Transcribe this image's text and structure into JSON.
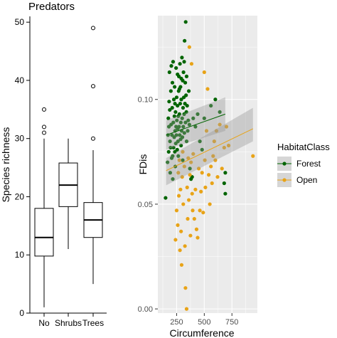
{
  "chart_data": [
    {
      "type": "box",
      "title": "Predators",
      "xlabel": "",
      "ylabel": "Species richness",
      "ylim": [
        0,
        51
      ],
      "yticks": [
        0,
        10,
        20,
        30,
        40,
        50
      ],
      "categories": [
        "No",
        "Shrubs",
        "Trees"
      ],
      "boxes": [
        {
          "category": "No",
          "min": 1,
          "q1": 9.8,
          "median": 13,
          "q3": 18,
          "max": 30,
          "outliers": [
            31,
            32,
            35
          ]
        },
        {
          "category": "Shrubs",
          "min": 11,
          "q1": 18.3,
          "median": 22,
          "q3": 25.8,
          "max": 30,
          "outliers": []
        },
        {
          "category": "Trees",
          "min": 5,
          "q1": 13,
          "median": 16,
          "q3": 19,
          "max": 28,
          "outliers": [
            30,
            39,
            49
          ]
        }
      ],
      "grid": false,
      "colors": {
        "box_fill": "#ffffff",
        "box_line": "#000000",
        "outlier": "#000000"
      }
    },
    {
      "type": "scatter",
      "xlabel": "Circumference",
      "ylabel": "FDis",
      "xlim": [
        80,
        980
      ],
      "ylim": [
        -0.002,
        0.14
      ],
      "xticks": [
        250,
        500,
        750
      ],
      "yticks": [
        0.0,
        0.05,
        0.1
      ],
      "ytick_labels": [
        "0.00",
        "0.05",
        "0.10"
      ],
      "grid": true,
      "legend": {
        "title": "HabitatClass",
        "position": "right",
        "entries": [
          "Forest",
          "Open"
        ]
      },
      "colors": {
        "Forest": "#006400",
        "Open": "#e8a317",
        "panel_bg": "#ebebeb",
        "grid_line": "#ffffff",
        "ribbon": "#999999"
      },
      "series": [
        {
          "name": "Forest",
          "fit": {
            "x": [
              155,
              690
            ],
            "y": [
              0.083,
              0.093
            ],
            "ci_low": [
              0.076,
              0.085
            ],
            "ci_high": [
              0.09,
              0.101
            ]
          },
          "points": [
            [
              150,
              0.053
            ],
            [
              168,
              0.07
            ],
            [
              172,
              0.083
            ],
            [
              175,
              0.091
            ],
            [
              178,
              0.075
            ],
            [
              180,
              0.087
            ],
            [
              182,
              0.099
            ],
            [
              185,
              0.113
            ],
            [
              188,
              0.095
            ],
            [
              190,
              0.08
            ],
            [
              192,
              0.065
            ],
            [
              195,
              0.077
            ],
            [
              198,
              0.104
            ],
            [
              200,
              0.088
            ],
            [
              202,
              0.116
            ],
            [
              205,
              0.072
            ],
            [
              208,
              0.083
            ],
            [
              210,
              0.096
            ],
            [
              212,
              0.108
            ],
            [
              214,
              0.073
            ],
            [
              215,
              0.062
            ],
            [
              218,
              0.118
            ],
            [
              220,
              0.089
            ],
            [
              222,
              0.077
            ],
            [
              225,
              0.1
            ],
            [
              228,
              0.082
            ],
            [
              230,
              0.092
            ],
            [
              232,
              0.106
            ],
            [
              234,
              0.075
            ],
            [
              236,
              0.085
            ],
            [
              238,
              0.068
            ],
            [
              240,
              0.094
            ],
            [
              242,
              0.079
            ],
            [
              245,
              0.087
            ],
            [
              248,
              0.083
            ],
            [
              250,
              0.101
            ],
            [
              252,
              0.09
            ],
            [
              255,
              0.076
            ],
            [
              258,
              0.097
            ],
            [
              260,
              0.086
            ],
            [
              262,
              0.08
            ],
            [
              265,
              0.092
            ],
            [
              268,
              0.104
            ],
            [
              270,
              0.111
            ],
            [
              272,
              0.087
            ],
            [
              275,
              0.093
            ],
            [
              278,
              0.083
            ],
            [
              280,
              0.117
            ],
            [
              282,
              0.098
            ],
            [
              285,
              0.106
            ],
            [
              288,
              0.089
            ],
            [
              290,
              0.078
            ],
            [
              292,
              0.1
            ],
            [
              295,
              0.085
            ],
            [
              298,
              0.12
            ],
            [
              300,
              0.091
            ],
            [
              302,
              0.082
            ],
            [
              305,
              0.109
            ],
            [
              308,
              0.096
            ],
            [
              310,
              0.087
            ],
            [
              312,
              0.113
            ],
            [
              315,
              0.101
            ],
            [
              318,
              0.093
            ],
            [
              320,
              0.084
            ],
            [
              322,
              0.128
            ],
            [
              325,
              0.098
            ],
            [
              328,
              0.108
            ],
            [
              330,
              0.089
            ],
            [
              332,
              0.137
            ],
            [
              335,
              0.102
            ],
            [
              338,
              0.094
            ],
            [
              340,
              0.08
            ],
            [
              345,
              0.097
            ],
            [
              350,
              0.085
            ],
            [
              355,
              0.09
            ],
            [
              360,
              0.104
            ],
            [
              365,
              0.088
            ],
            [
              370,
              0.067
            ],
            [
              380,
              0.062
            ],
            [
              390,
              0.063
            ],
            [
              400,
              0.091
            ],
            [
              420,
              0.087
            ],
            [
              440,
              0.093
            ],
            [
              460,
              0.08
            ],
            [
              480,
              0.076
            ],
            [
              500,
              0.091
            ],
            [
              560,
              0.097
            ],
            [
              600,
              0.1
            ],
            [
              640,
              0.094
            ],
            [
              680,
              0.06
            ],
            [
              690,
              0.055
            ],
            [
              690,
              0.065
            ],
            [
              265,
              0.073
            ],
            [
              286,
              0.081
            ],
            [
              305,
              0.071
            ],
            [
              235,
              0.098
            ],
            [
              245,
              0.115
            ],
            [
              258,
              0.112
            ],
            [
              275,
              0.105
            ],
            [
              292,
              0.11
            ],
            [
              318,
              0.118
            ],
            [
              340,
              0.111
            ]
          ]
        },
        {
          "name": "Open",
          "fit": {
            "x": [
              155,
              940
            ],
            "y": [
              0.066,
              0.086
            ],
            "ci_low": [
              0.059,
              0.08
            ],
            "ci_high": [
              0.072,
              0.096
            ]
          },
          "points": [
            [
              240,
              0.033
            ],
            [
              250,
              0.047
            ],
            [
              260,
              0.04
            ],
            [
              265,
              0.065
            ],
            [
              270,
              0.054
            ],
            [
              275,
              0.071
            ],
            [
              280,
              0.028
            ],
            [
              285,
              0.057
            ],
            [
              290,
              0.037
            ],
            [
              295,
              0.021
            ],
            [
              300,
              0.063
            ],
            [
              305,
              0.075
            ],
            [
              310,
              0.05
            ],
            [
              320,
              0.068
            ],
            [
              325,
              0.03
            ],
            [
              330,
              0.01
            ],
            [
              340,
              0.0
            ],
            [
              345,
              0.058
            ],
            [
              350,
              0.043
            ],
            [
              355,
              0.072
            ],
            [
              360,
              0.052
            ],
            [
              365,
              0.125
            ],
            [
              370,
              0.064
            ],
            [
              375,
              0.035
            ],
            [
              380,
              0.07
            ],
            [
              385,
              0.117
            ],
            [
              390,
              0.055
            ],
            [
              395,
              0.047
            ],
            [
              400,
              0.074
            ],
            [
              410,
              0.043
            ],
            [
              420,
              0.057
            ],
            [
              430,
              0.038
            ],
            [
              440,
              0.034
            ],
            [
              450,
              0.067
            ],
            [
              460,
              0.047
            ],
            [
              470,
              0.056
            ],
            [
              480,
              0.065
            ],
            [
              490,
              0.046
            ],
            [
              500,
              0.113
            ],
            [
              505,
              0.071
            ],
            [
              510,
              0.058
            ],
            [
              520,
              0.085
            ],
            [
              530,
              0.105
            ],
            [
              540,
              0.064
            ],
            [
              550,
              0.05
            ],
            [
              560,
              0.068
            ],
            [
              570,
              0.06
            ],
            [
              580,
              0.073
            ],
            [
              590,
              0.08
            ],
            [
              600,
              0.071
            ],
            [
              610,
              0.085
            ],
            [
              620,
              0.063
            ],
            [
              640,
              0.088
            ],
            [
              660,
              0.067
            ],
            [
              680,
              0.077
            ],
            [
              700,
              0.087
            ],
            [
              720,
              0.078
            ],
            [
              940,
              0.073
            ]
          ]
        }
      ]
    }
  ]
}
